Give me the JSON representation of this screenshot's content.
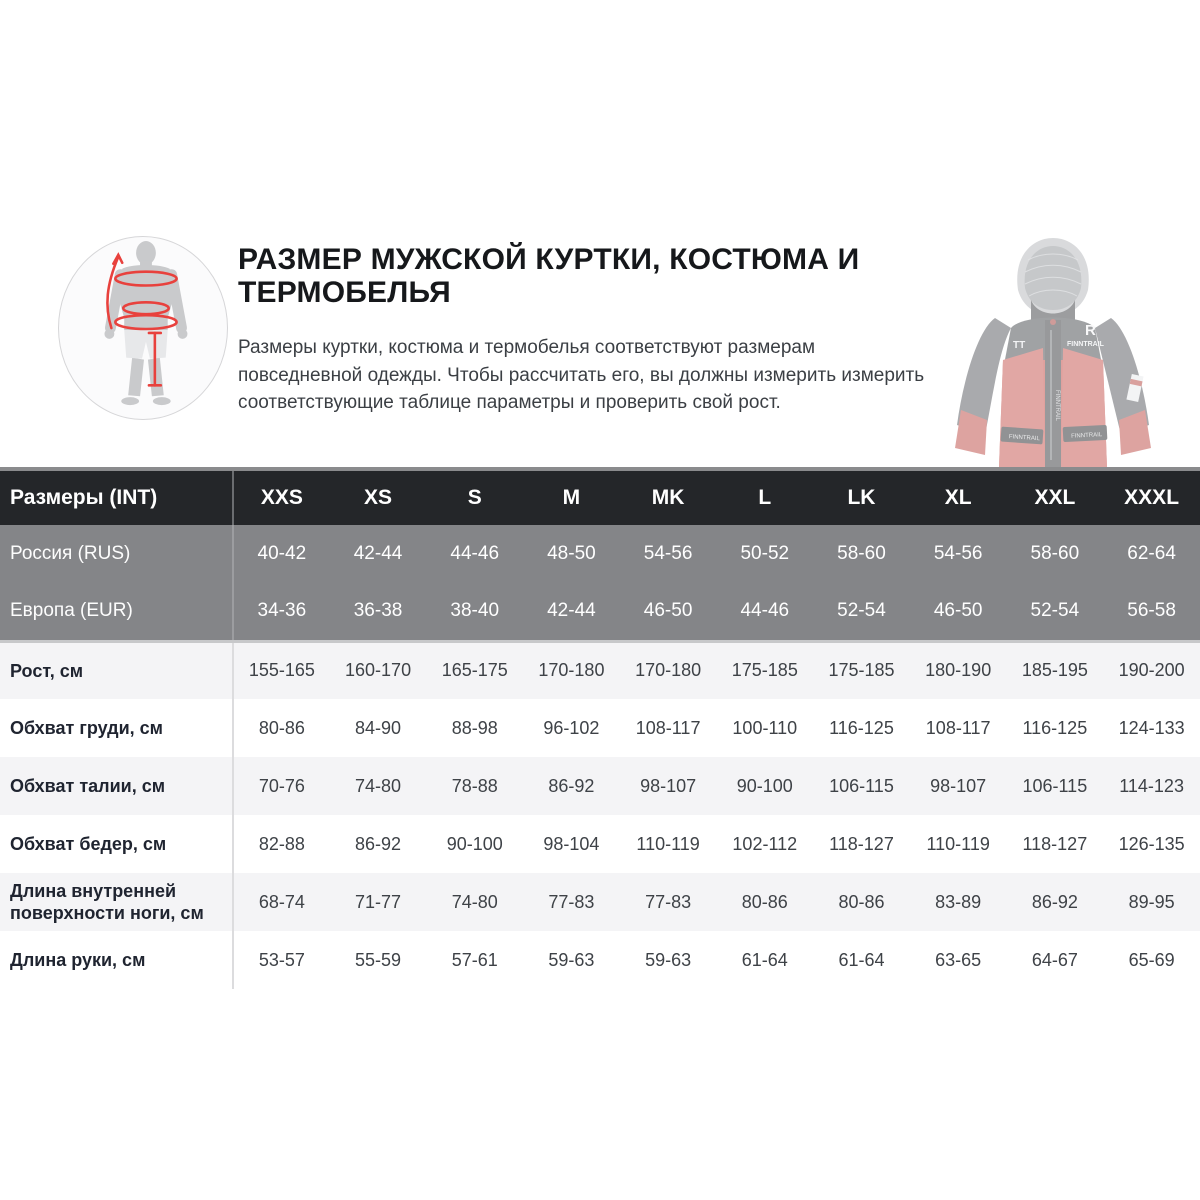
{
  "intro": {
    "title": "РАЗМЕР МУЖСКОЙ КУРТКИ, КОСТЮМА И ТЕРМОБЕЛЬЯ",
    "description": "Размеры куртки, костюма и термобелья соответствуют размерам повседневной одежды. Чтобы рассчитать его, вы должны измерить измерить соответствующие таблице параметры и проверить свой рост.",
    "figure_icon": "body-measurement-diagram",
    "jacket": {
      "icon": "jacket-photo",
      "brand_chest": "FINNTRAIL",
      "logo_letter": "R",
      "sleeve_mark": "TT",
      "strap_text_left": "FINNTRAIL",
      "strap_text_right": "FINNTRAIL"
    }
  },
  "colors": {
    "measurement_red": "#e8413d",
    "table_header_bg": "#242629",
    "region_rows_bg": "#848588",
    "alt_row_bg": "#f4f4f6"
  },
  "table": {
    "int_label": "Размеры (INT)",
    "sizes": [
      "XXS",
      "XS",
      "S",
      "M",
      "MK",
      "L",
      "LK",
      "XL",
      "XXL",
      "XXXL"
    ],
    "region_rows": [
      {
        "label": "Россия (RUS)",
        "values": [
          "40-42",
          "42-44",
          "44-46",
          "48-50",
          "54-56",
          "50-52",
          "58-60",
          "54-56",
          "58-60",
          "62-64"
        ]
      },
      {
        "label": "Европа (EUR)",
        "values": [
          "34-36",
          "36-38",
          "38-40",
          "42-44",
          "46-50",
          "44-46",
          "52-54",
          "46-50",
          "52-54",
          "56-58"
        ]
      }
    ],
    "measure_rows": [
      {
        "label": "Рост, см",
        "values": [
          "155-165",
          "160-170",
          "165-175",
          "170-180",
          "170-180",
          "175-185",
          "175-185",
          "180-190",
          "185-195",
          "190-200"
        ]
      },
      {
        "label": "Обхват груди, см",
        "values": [
          "80-86",
          "84-90",
          "88-98",
          "96-102",
          "108-117",
          "100-110",
          "116-125",
          "108-117",
          "116-125",
          "124-133"
        ]
      },
      {
        "label": "Обхват талии, см",
        "values": [
          "70-76",
          "74-80",
          "78-88",
          "86-92",
          "98-107",
          "90-100",
          "106-115",
          "98-107",
          "106-115",
          "114-123"
        ]
      },
      {
        "label": "Обхват бедер, см",
        "values": [
          "82-88",
          "86-92",
          "90-100",
          "98-104",
          "110-119",
          "102-112",
          "118-127",
          "110-119",
          "118-127",
          "126-135"
        ]
      },
      {
        "label": "Длина внутренней поверхности ноги, см",
        "values": [
          "68-74",
          "71-77",
          "74-80",
          "77-83",
          "77-83",
          "80-86",
          "80-86",
          "83-89",
          "86-92",
          "89-95"
        ]
      },
      {
        "label": "Длина руки, см",
        "values": [
          "53-57",
          "55-59",
          "57-61",
          "59-63",
          "59-63",
          "61-64",
          "61-64",
          "63-65",
          "64-67",
          "65-69"
        ]
      }
    ]
  }
}
